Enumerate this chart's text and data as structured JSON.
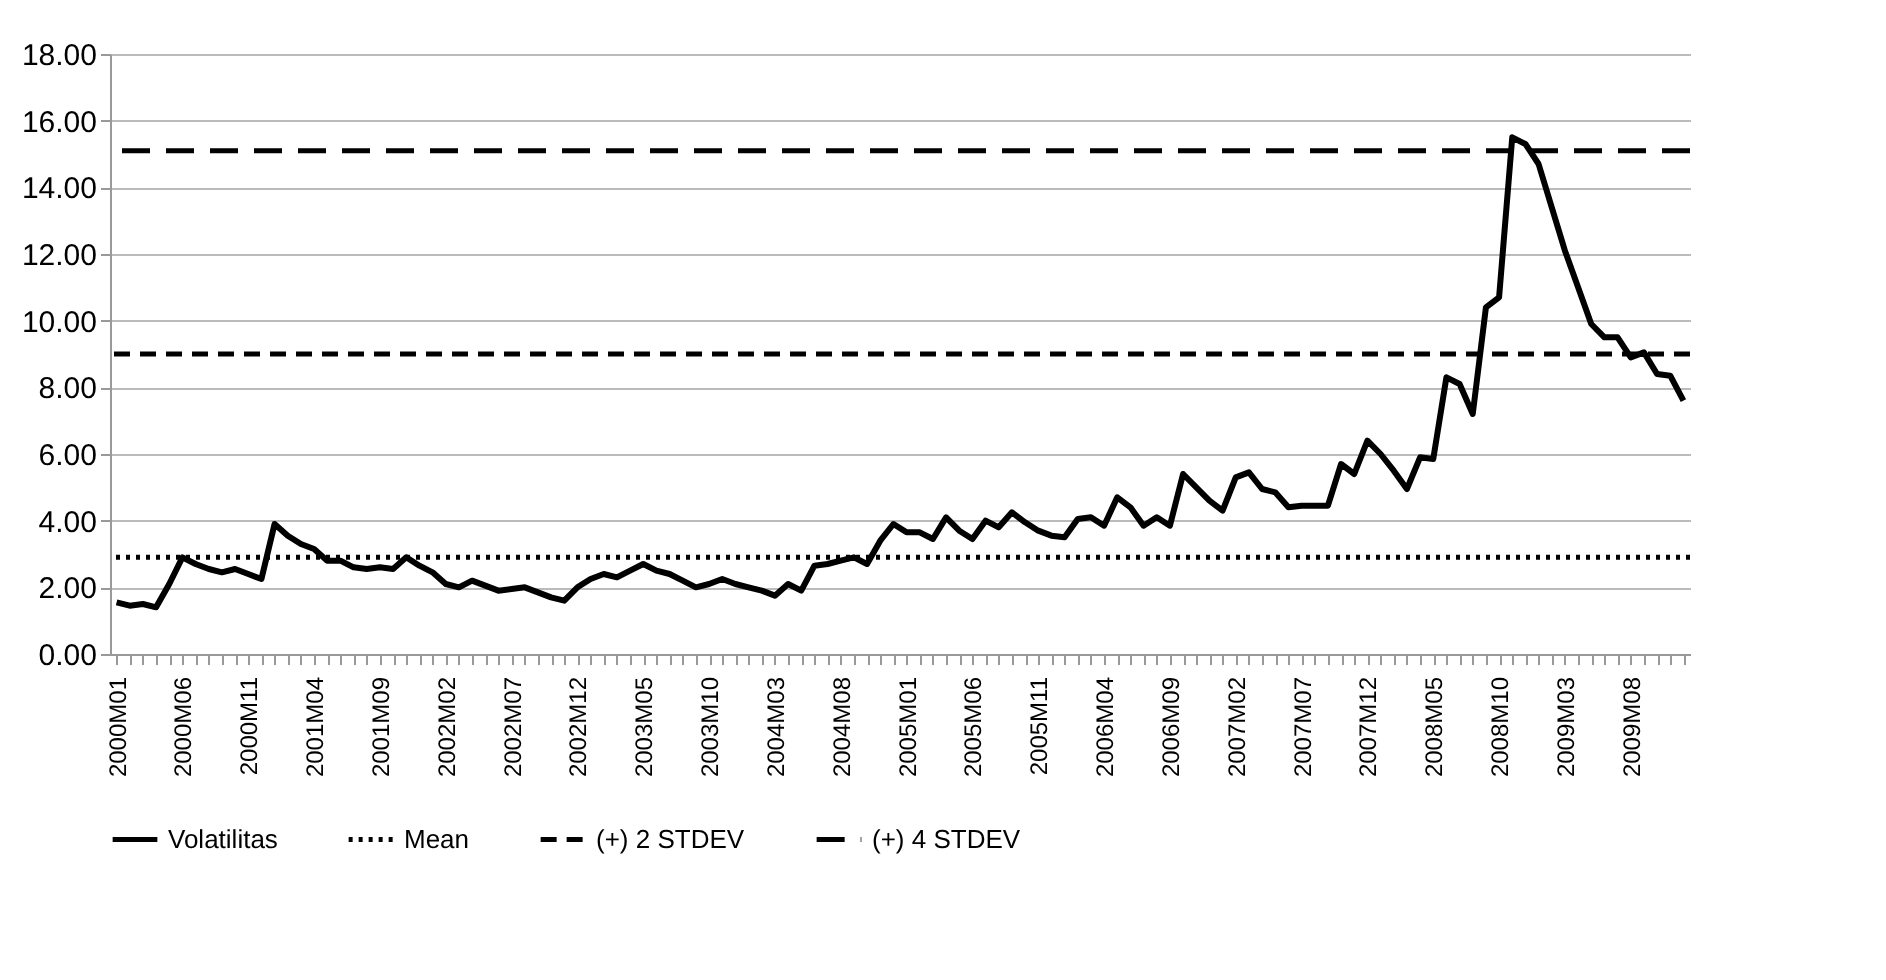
{
  "chart_data": {
    "type": "line",
    "categories": [
      "2000M01",
      null,
      null,
      null,
      null,
      "2000M06",
      null,
      null,
      null,
      null,
      "2000M11",
      null,
      null,
      null,
      null,
      "2001M04",
      null,
      null,
      null,
      null,
      "2001M09",
      null,
      null,
      null,
      null,
      "2002M02",
      null,
      null,
      null,
      null,
      "2002M07",
      null,
      null,
      null,
      null,
      "2002M12",
      null,
      null,
      null,
      null,
      "2003M05",
      null,
      null,
      null,
      null,
      "2003M10",
      null,
      null,
      null,
      null,
      "2004M03",
      null,
      null,
      null,
      null,
      "2004M08",
      null,
      null,
      null,
      null,
      "2005M01",
      null,
      null,
      null,
      null,
      "2005M06",
      null,
      null,
      null,
      null,
      "2005M11",
      null,
      null,
      null,
      null,
      "2006M04",
      null,
      null,
      null,
      null,
      "2006M09",
      null,
      null,
      null,
      null,
      "2007M02",
      null,
      null,
      null,
      null,
      "2007M07",
      null,
      null,
      null,
      null,
      "2007M12",
      null,
      null,
      null,
      null,
      "2008M05",
      null,
      null,
      null,
      null,
      "2008M10",
      null,
      null,
      null,
      null,
      "2009M03",
      null,
      null,
      null,
      null,
      "2009M08",
      null,
      null,
      null,
      null
    ],
    "series": [
      {
        "name": "Volatilitas",
        "color": "#000000",
        "values": [
          1.55,
          1.45,
          1.5,
          1.4,
          2.1,
          2.9,
          2.7,
          2.55,
          2.45,
          2.55,
          2.4,
          2.25,
          3.9,
          3.55,
          3.3,
          3.15,
          2.8,
          2.8,
          2.6,
          2.55,
          2.6,
          2.55,
          2.9,
          2.65,
          2.45,
          2.1,
          2.0,
          2.2,
          2.05,
          1.9,
          1.95,
          2.0,
          1.85,
          1.7,
          1.6,
          2.0,
          2.25,
          2.4,
          2.3,
          2.5,
          2.7,
          2.5,
          2.4,
          2.2,
          2.0,
          2.1,
          2.25,
          2.1,
          2.0,
          1.9,
          1.75,
          2.1,
          1.9,
          2.65,
          2.7,
          2.8,
          2.9,
          2.7,
          3.4,
          3.9,
          3.65,
          3.65,
          3.45,
          4.1,
          3.7,
          3.45,
          4.0,
          3.8,
          4.25,
          3.95,
          3.7,
          3.55,
          3.5,
          4.05,
          4.1,
          3.85,
          4.7,
          4.4,
          3.85,
          4.1,
          3.85,
          5.4,
          5.0,
          4.6,
          4.3,
          5.3,
          5.45,
          4.95,
          4.85,
          4.4,
          4.45,
          4.45,
          4.45,
          5.7,
          5.4,
          6.4,
          6.0,
          5.5,
          4.95,
          5.9,
          5.85,
          8.3,
          8.1,
          7.2,
          10.4,
          10.7,
          15.5,
          15.3,
          14.7,
          13.4,
          12.1,
          11.0,
          9.9,
          9.5,
          9.5,
          8.9,
          9.05,
          8.4,
          8.35,
          7.6
        ]
      }
    ],
    "ref_lines": [
      {
        "axis": "y",
        "value": 2.9,
        "label": "Mean",
        "color": "#000000",
        "line_style": "dotted"
      },
      {
        "axis": "y",
        "value": 9.0,
        "label": "(+) 2 STDEV",
        "color": "#000000",
        "line_style": "dashed"
      },
      {
        "axis": "y",
        "value": 15.1,
        "label": "(+) 4 STDEV",
        "color": "#000000",
        "line_style": "dashed"
      }
    ],
    "ylim": [
      0,
      18
    ],
    "yticks": [
      {
        "value": 0,
        "label": "0.00"
      },
      {
        "value": 2,
        "label": "2.00"
      },
      {
        "value": 4,
        "label": "4.00"
      },
      {
        "value": 6,
        "label": "6.00"
      },
      {
        "value": 8,
        "label": "8.00"
      },
      {
        "value": 10,
        "label": "10.00"
      },
      {
        "value": 12,
        "label": "12.00"
      },
      {
        "value": 14,
        "label": "14.00"
      },
      {
        "value": 16,
        "label": "16.00"
      },
      {
        "value": 18,
        "label": "18.00"
      }
    ],
    "grid": "y",
    "legend": "bottom",
    "line_style": "solid"
  }
}
